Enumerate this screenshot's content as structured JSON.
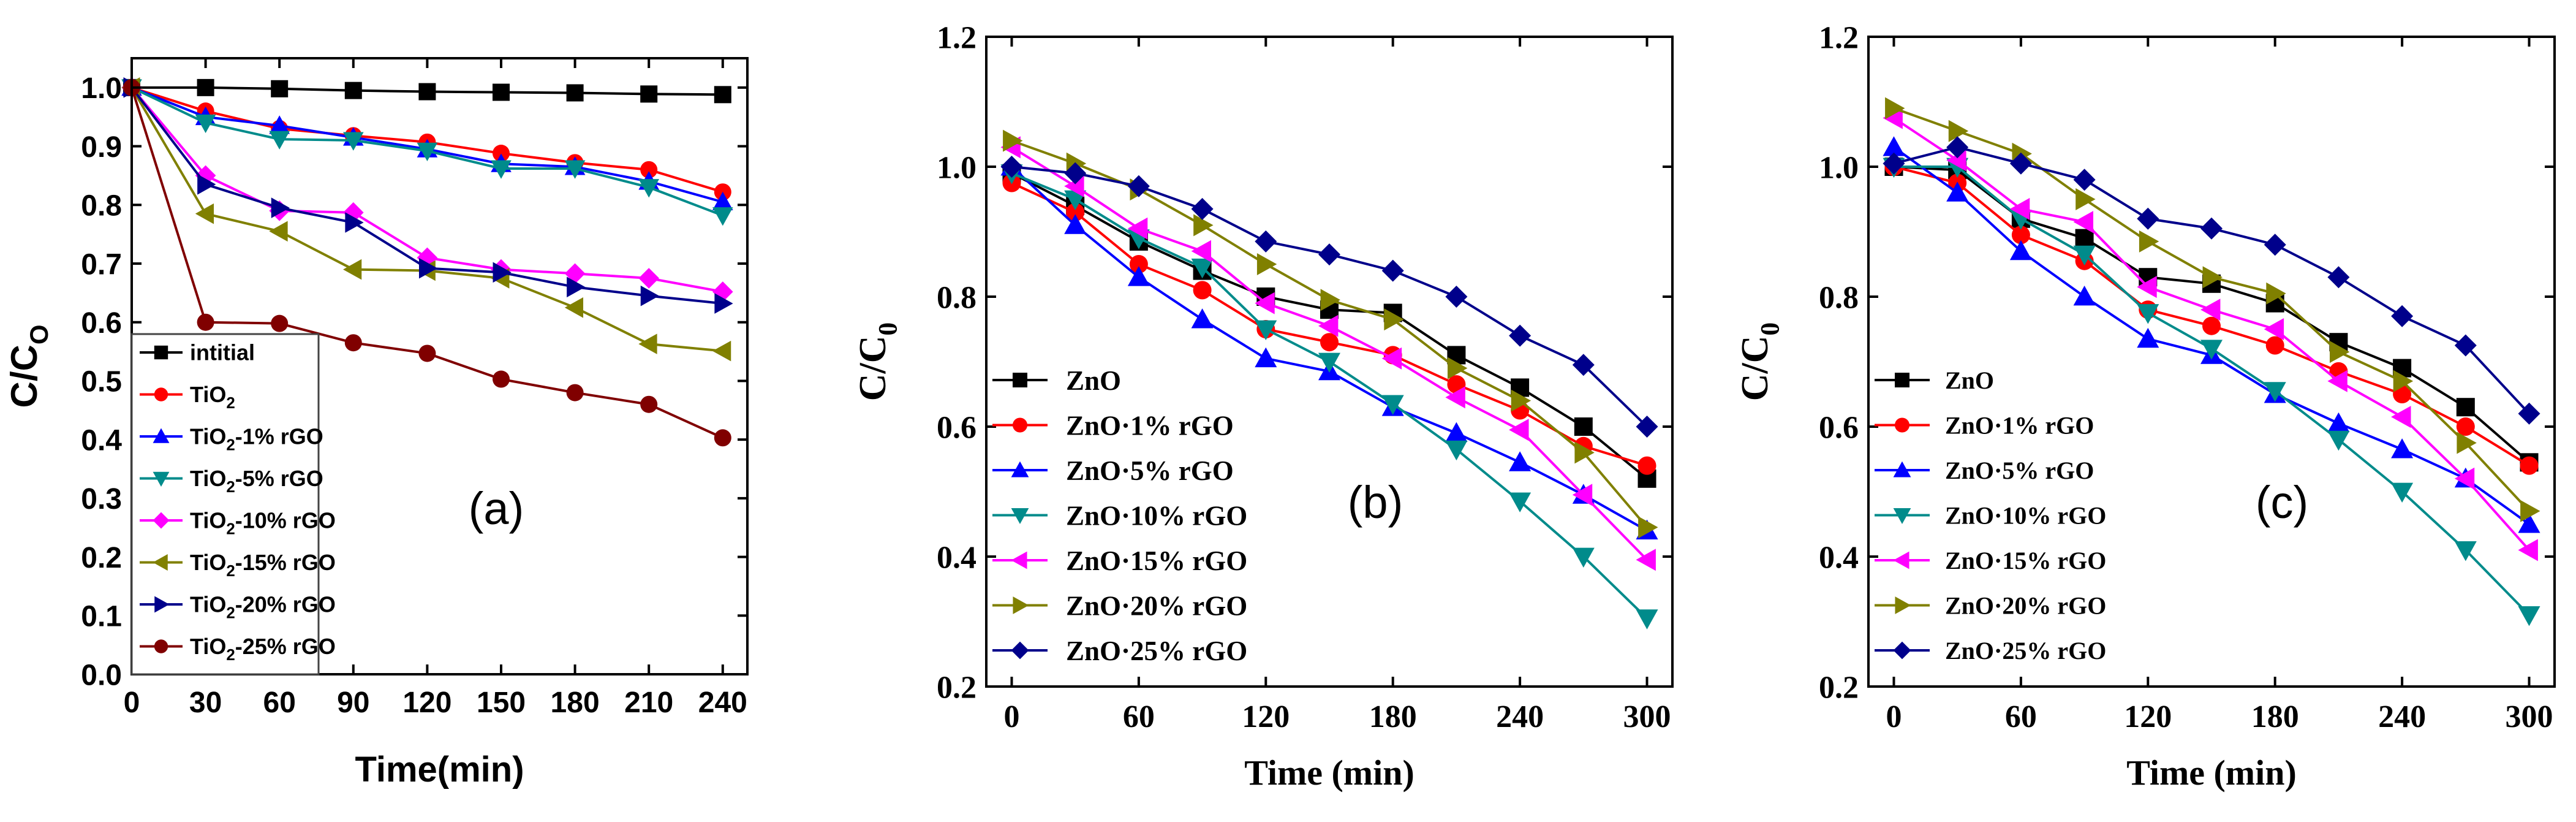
{
  "chart_data": [
    {
      "type": "line",
      "panel_label": "(a)",
      "xlabel": "Time(min)",
      "ylabel": "C/C",
      "ylabel_sub": "O",
      "xlim": [
        0,
        250
      ],
      "ylim": [
        0,
        1.05
      ],
      "xticks": [
        0,
        30,
        60,
        90,
        120,
        150,
        180,
        210,
        240
      ],
      "yticks": [
        0.0,
        0.1,
        0.2,
        0.3,
        0.4,
        0.5,
        0.6,
        0.7,
        0.8,
        0.9,
        1.0
      ],
      "ytick_labels": [
        "0.0",
        "0.1",
        "0.2",
        "0.3",
        "0.4",
        "0.5",
        "0.6",
        "0.7",
        "0.8",
        "0.9",
        "1.0"
      ],
      "x": [
        0,
        30,
        60,
        90,
        120,
        150,
        180,
        210,
        240
      ],
      "series": [
        {
          "name": "intitial",
          "label_parts": [
            "intitial"
          ],
          "color": "#000000",
          "marker": "square",
          "values": [
            1.0,
            1.0,
            0.998,
            0.995,
            0.993,
            0.992,
            0.991,
            0.989,
            0.988
          ]
        },
        {
          "name": "TiO2",
          "label_parts": [
            "TiO",
            "2",
            ""
          ],
          "color": "#ff0000",
          "marker": "circle",
          "values": [
            1.0,
            0.96,
            0.93,
            0.918,
            0.907,
            0.888,
            0.872,
            0.86,
            0.822
          ]
        },
        {
          "name": "TiO2-1% rGO",
          "label_parts": [
            "TiO",
            "2",
            "-1% rGO"
          ],
          "color": "#0000ff",
          "marker": "triangle-up",
          "values": [
            1.0,
            0.95,
            0.935,
            0.915,
            0.895,
            0.87,
            0.865,
            0.84,
            0.805
          ]
        },
        {
          "name": "TiO2-5% rGO",
          "label_parts": [
            "TiO",
            "2",
            "-5% rGO"
          ],
          "color": "#008b8b",
          "marker": "triangle-down",
          "values": [
            1.0,
            0.94,
            0.912,
            0.91,
            0.892,
            0.862,
            0.862,
            0.83,
            0.782
          ]
        },
        {
          "name": "TiO2-10% rGO",
          "label_parts": [
            "TiO",
            "2",
            "-10% rGO"
          ],
          "color": "#ff00ff",
          "marker": "diamond",
          "values": [
            1.0,
            0.85,
            0.79,
            0.787,
            0.71,
            0.69,
            0.683,
            0.675,
            0.652
          ]
        },
        {
          "name": "TiO2-15% rGO",
          "label_parts": [
            "TiO",
            "2",
            "-15% rGO"
          ],
          "color": "#808000",
          "marker": "triangle-left",
          "values": [
            1.0,
            0.785,
            0.755,
            0.69,
            0.688,
            0.675,
            0.625,
            0.563,
            0.551
          ]
        },
        {
          "name": "TiO2-20% rGO",
          "label_parts": [
            "TiO",
            "2",
            "-20% rGO"
          ],
          "color": "#00008b",
          "marker": "triangle-right",
          "values": [
            1.0,
            0.835,
            0.795,
            0.77,
            0.692,
            0.685,
            0.66,
            0.645,
            0.632
          ]
        },
        {
          "name": "TiO2-25% rGO",
          "label_parts": [
            "TiO",
            "2",
            "-25% rGO"
          ],
          "color": "#800000",
          "marker": "circle",
          "values": [
            1.0,
            0.6,
            0.598,
            0.565,
            0.547,
            0.503,
            0.48,
            0.46,
            0.403
          ]
        }
      ]
    },
    {
      "type": "line",
      "panel_label": "(b)",
      "xlabel": "Time (min)",
      "ylabel": "C/C",
      "ylabel_sub": "0",
      "xlim": [
        -12,
        312
      ],
      "ylim": [
        0.2,
        1.2
      ],
      "xticks": [
        0,
        60,
        120,
        180,
        240,
        300
      ],
      "yticks": [
        0.2,
        0.4,
        0.6,
        0.8,
        1.0,
        1.2
      ],
      "ytick_labels": [
        "0.2",
        "0.4",
        "0.6",
        "0.8",
        "1.0",
        "1.2"
      ],
      "x": [
        0,
        30,
        60,
        90,
        120,
        150,
        180,
        210,
        240,
        270,
        300
      ],
      "series": [
        {
          "name": "ZnO",
          "label_parts": [
            "ZnO"
          ],
          "color": "#000000",
          "marker": "square",
          "values": [
            0.99,
            0.94,
            0.885,
            0.84,
            0.8,
            0.78,
            0.775,
            0.71,
            0.66,
            0.6,
            0.52
          ]
        },
        {
          "name": "ZnO·1% rGO",
          "label_parts": [
            "ZnO·1% rGO"
          ],
          "color": "#ff0000",
          "marker": "circle",
          "values": [
            0.975,
            0.93,
            0.85,
            0.81,
            0.75,
            0.73,
            0.71,
            0.665,
            0.625,
            0.57,
            0.54
          ]
        },
        {
          "name": "ZnO·5% rGO",
          "label_parts": [
            "ZnO·5% rGO"
          ],
          "color": "#0000ff",
          "marker": "triangle-up",
          "values": [
            1.0,
            0.91,
            0.83,
            0.765,
            0.705,
            0.685,
            0.63,
            0.59,
            0.545,
            0.495,
            0.44
          ]
        },
        {
          "name": "ZnO·10% rGO",
          "label_parts": [
            "ZnO·10% rGO"
          ],
          "color": "#008b8b",
          "marker": "triangle-down",
          "values": [
            0.99,
            0.95,
            0.89,
            0.845,
            0.75,
            0.7,
            0.635,
            0.565,
            0.485,
            0.4,
            0.305
          ]
        },
        {
          "name": "ZnO·15% rGO",
          "label_parts": [
            "ZnO·15% rGO"
          ],
          "color": "#ff00ff",
          "marker": "triangle-left",
          "values": [
            1.03,
            0.97,
            0.905,
            0.87,
            0.79,
            0.755,
            0.705,
            0.645,
            0.595,
            0.495,
            0.395
          ]
        },
        {
          "name": "ZnO·20% rGO",
          "label_parts": [
            "ZnO·20% rGO"
          ],
          "color": "#808000",
          "marker": "triangle-right",
          "values": [
            1.04,
            1.005,
            0.965,
            0.91,
            0.85,
            0.795,
            0.765,
            0.69,
            0.64,
            0.56,
            0.445
          ]
        },
        {
          "name": "ZnO·25% rGO",
          "label_parts": [
            "ZnO·25% rGO"
          ],
          "color": "#00008b",
          "marker": "diamond",
          "values": [
            1.0,
            0.99,
            0.97,
            0.935,
            0.885,
            0.865,
            0.84,
            0.8,
            0.74,
            0.695,
            0.6
          ]
        }
      ]
    },
    {
      "type": "line",
      "panel_label": "(c)",
      "xlabel": "Time (min)",
      "ylabel": "C/C",
      "ylabel_sub": "0",
      "xlim": [
        -12,
        312
      ],
      "ylim": [
        0.2,
        1.2
      ],
      "xticks": [
        0,
        60,
        120,
        180,
        240,
        300
      ],
      "yticks": [
        0.2,
        0.4,
        0.6,
        0.8,
        1.0,
        1.2
      ],
      "ytick_labels": [
        "0.2",
        "0.4",
        "0.6",
        "0.8",
        "1.0",
        "1.2"
      ],
      "x": [
        0,
        30,
        60,
        90,
        120,
        150,
        180,
        210,
        240,
        270,
        300
      ],
      "series": [
        {
          "name": "ZnO",
          "label_parts": [
            "ZnO"
          ],
          "color": "#000000",
          "marker": "square",
          "values": [
            1.0,
            0.995,
            0.92,
            0.89,
            0.83,
            0.82,
            0.79,
            0.73,
            0.69,
            0.63,
            0.545
          ]
        },
        {
          "name": "ZnO·1% rGO",
          "label_parts": [
            "ZnO·1% rGO"
          ],
          "color": "#ff0000",
          "marker": "circle",
          "values": [
            1.0,
            0.975,
            0.895,
            0.855,
            0.78,
            0.755,
            0.725,
            0.685,
            0.65,
            0.6,
            0.54
          ]
        },
        {
          "name": "ZnO·5% rGO",
          "label_parts": [
            "ZnO·5% rGO"
          ],
          "color": "#0000ff",
          "marker": "triangle-up",
          "values": [
            1.03,
            0.96,
            0.87,
            0.8,
            0.735,
            0.71,
            0.65,
            0.605,
            0.565,
            0.52,
            0.45
          ]
        },
        {
          "name": "ZnO·10% rGO",
          "label_parts": [
            "ZnO·10% rGO"
          ],
          "color": "#008b8b",
          "marker": "triangle-down",
          "values": [
            1.0,
            1.0,
            0.92,
            0.865,
            0.775,
            0.72,
            0.655,
            0.58,
            0.5,
            0.41,
            0.31
          ]
        },
        {
          "name": "ZnO·15% rGO",
          "label_parts": [
            "ZnO·15% rGO"
          ],
          "color": "#ff00ff",
          "marker": "triangle-left",
          "values": [
            1.075,
            1.01,
            0.935,
            0.915,
            0.815,
            0.78,
            0.75,
            0.67,
            0.615,
            0.52,
            0.41
          ]
        },
        {
          "name": "ZnO·20% rGO",
          "label_parts": [
            "ZnO·20% rGO"
          ],
          "color": "#808000",
          "marker": "triangle-right",
          "values": [
            1.09,
            1.055,
            1.02,
            0.95,
            0.885,
            0.83,
            0.805,
            0.715,
            0.67,
            0.575,
            0.47
          ]
        },
        {
          "name": "ZnO·25% rGO",
          "label_parts": [
            "ZnO·25% rGO"
          ],
          "color": "#00008b",
          "marker": "diamond",
          "values": [
            1.005,
            1.03,
            1.005,
            0.98,
            0.92,
            0.905,
            0.88,
            0.83,
            0.77,
            0.725,
            0.62
          ]
        }
      ]
    }
  ]
}
